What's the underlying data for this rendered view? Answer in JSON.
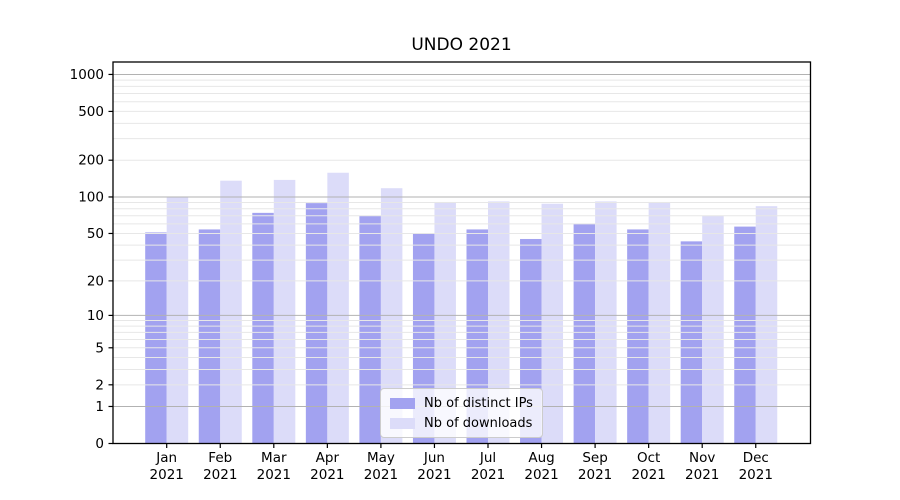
{
  "chart_data": {
    "type": "bar",
    "title": "UNDO 2021",
    "categories": [
      "Jan",
      "Feb",
      "Mar",
      "Apr",
      "May",
      "Jun",
      "Jul",
      "Aug",
      "Sep",
      "Oct",
      "Nov",
      "Dec"
    ],
    "category_year": "2021",
    "series": [
      {
        "name": "Nb of distinct IPs",
        "color": "#a2a2f0",
        "values": [
          51,
          54,
          74,
          89,
          70,
          50,
          54,
          45,
          60,
          54,
          43,
          57
        ]
      },
      {
        "name": "Nb of downloads",
        "color": "#dcdcf9",
        "values": [
          100,
          136,
          138,
          158,
          118,
          91,
          92,
          88,
          92,
          91,
          70,
          84
        ]
      }
    ],
    "y_axis": {
      "scale": "log1p",
      "tick_labels": [
        1000,
        500,
        200,
        100,
        50,
        20,
        10,
        5,
        2,
        1,
        0
      ],
      "major_gridlines": [
        1,
        10,
        100,
        1000
      ],
      "minor_gridlines": [
        2,
        3,
        4,
        5,
        6,
        7,
        8,
        9,
        20,
        30,
        40,
        50,
        60,
        70,
        80,
        90,
        200,
        300,
        400,
        500,
        600,
        700,
        800,
        900
      ],
      "ylim": [
        0,
        1250
      ]
    },
    "legend_position": "lower center inside",
    "colors": {
      "major_grid": "#b2b2b2",
      "minor_grid": "#e7e7e7",
      "axis": "#000000",
      "text": "#000000",
      "background": "#ffffff"
    }
  }
}
